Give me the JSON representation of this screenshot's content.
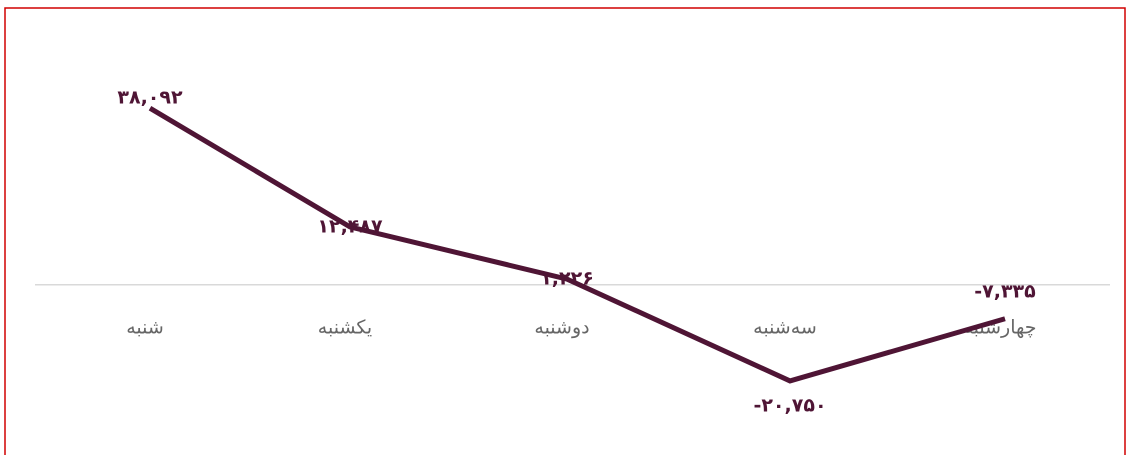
{
  "chart_data": {
    "type": "line",
    "categories": [
      "شنبه",
      "یکشنبه",
      "دوشنبه",
      "سه‌شنبه",
      "چهارشنبه"
    ],
    "series": [
      {
        "name": null,
        "color": "#4f1535",
        "values": [
          38092,
          12487,
          1226,
          -20750,
          -7335
        ],
        "value_labels": [
          "۳۸,۰۹۲",
          "۱۲,۴۸۷",
          "۱,۲۲۶",
          "-۲۰,۷۵۰",
          "-۷,۳۳۵"
        ]
      }
    ],
    "ylim": [
      -35000,
      50000
    ]
  }
}
